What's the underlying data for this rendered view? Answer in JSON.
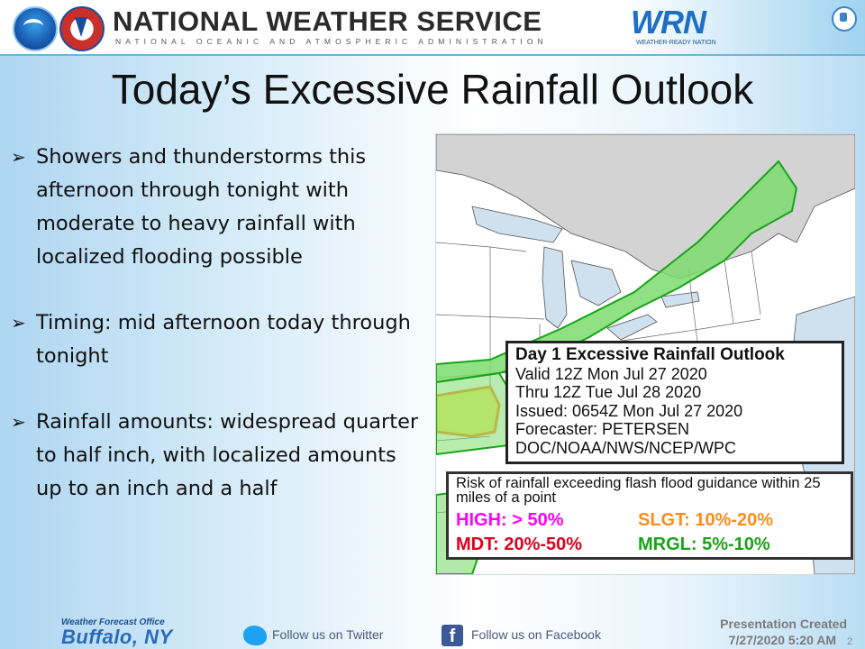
{
  "header": {
    "agency_title": "NATIONAL WEATHER SERVICE",
    "agency_subtitle": "NATIONAL OCEANIC AND ATMOSPHERIC ADMINISTRATION",
    "wrn_logo": "WRN",
    "wrn_tagline": "WEATHER-READY NATION",
    "icons": [
      "noaa-logo",
      "nws-logo",
      "wrn-logo",
      "doc-seal"
    ]
  },
  "slide": {
    "title": "Today’s Excessive Rainfall Outlook",
    "bullets": [
      "Showers and thunderstorms this afternoon through tonight with moderate to heavy rainfall with localized flooding possible",
      "Timing: mid afternoon today through tonight",
      "Rainfall amounts: widespread quarter to half inch, with localized amounts up to an inch and a half"
    ],
    "bullet_marker": "➢"
  },
  "map": {
    "info_box": {
      "header": "Day 1 Excessive Rainfall Outlook",
      "lines": [
        "Valid 12Z Mon Jul 27 2020",
        "Thru 12Z Tue Jul 28 2020",
        "Issued: 0654Z Mon Jul 27 2020",
        "Forecaster: PETERSEN",
        "DOC/NOAA/NWS/NCEP/WPC"
      ]
    },
    "risk_legend": {
      "header": "Risk of rainfall exceeding flash flood guidance within 25 miles of a point",
      "high": "HIGH: > 50%",
      "slgt": "SLGT: 10%-20%",
      "mdt": "MDT: 20%-50%",
      "mrgl": "MRGL: 5%-10%"
    },
    "colors": {
      "high": "#ff00ff",
      "slgt": "#ff8c1a",
      "mdt": "#e0001b",
      "mrgl": "#19a319",
      "marginal_fill": "#7ddc6e",
      "slight_fill": "#f5ee6a",
      "canada": "#d3d3d3",
      "water": "#cfe0ef"
    }
  },
  "footer": {
    "office_label": "Weather Forecast Office",
    "office_city": "Buffalo, NY",
    "twitter_text": "Follow us on Twitter",
    "facebook_text": "Follow us on Facebook",
    "presentation_label": "Presentation Created",
    "presentation_date": "7/27/2020 5:20 AM",
    "slide_number": "2"
  }
}
